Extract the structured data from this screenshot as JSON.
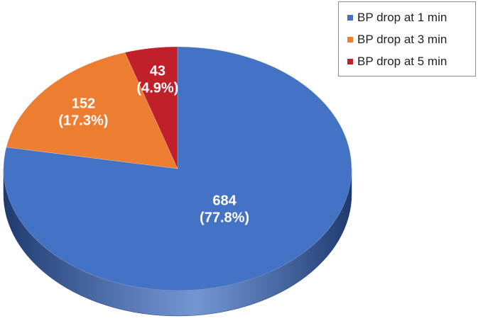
{
  "chart_data": {
    "type": "pie",
    "style": "3d",
    "title": "",
    "legend_position": "top-right",
    "categories": [
      "BP drop at 1 min",
      "BP drop at 3 min",
      "BP drop at 5 min"
    ],
    "values": [
      684,
      152,
      43
    ],
    "labels": [
      {
        "count": "684",
        "percent": "(77.8%)"
      },
      {
        "count": "152",
        "percent": "(17.3%)"
      },
      {
        "count": "43",
        "percent": "(4.9%)"
      }
    ],
    "colors": [
      "#4472c4",
      "#ed7d31",
      "#c0202a"
    ],
    "side_colors": [
      "#1f3a6e",
      "#8a4416",
      "#6e1016"
    ]
  }
}
